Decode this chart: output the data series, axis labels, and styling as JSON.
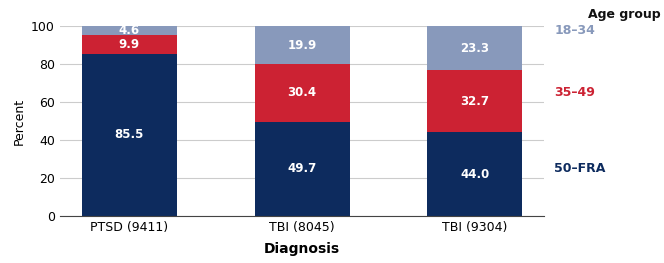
{
  "categories": [
    "PTSD (9411)",
    "TBI (8045)",
    "TBI (9304)"
  ],
  "series": {
    "50-FRA": [
      85.5,
      49.7,
      44.0
    ],
    "35-49": [
      9.9,
      30.4,
      32.7
    ],
    "18-34": [
      4.6,
      19.9,
      23.3
    ]
  },
  "colors": {
    "50-FRA": "#0d2b5e",
    "35-49": "#cc2233",
    "18-34": "#8899bb"
  },
  "legend_colors": {
    "18-34": "#8899bb",
    "35-49": "#cc2233",
    "50-FRA": "#0d2b5e"
  },
  "ylabel": "Percent",
  "xlabel": "Diagnosis",
  "right_header": "Age group",
  "legend_entries": [
    {
      "label": "18–34",
      "color": "#8899bb",
      "y_data": 97.7
    },
    {
      "label": "35–49",
      "color": "#cc2233",
      "y_data": 65.0
    },
    {
      "label": "50–FRA",
      "color": "#0d2b5e",
      "y_data": 25.0
    }
  ],
  "ylim": [
    0,
    100
  ],
  "yticks": [
    0,
    20,
    40,
    60,
    80,
    100
  ],
  "label_fontsize": 9,
  "tick_fontsize": 9,
  "legend_fontsize": 9,
  "bar_width": 0.55,
  "background_color": "#ffffff",
  "grid_color": "#cccccc",
  "spine_color": "#444444"
}
